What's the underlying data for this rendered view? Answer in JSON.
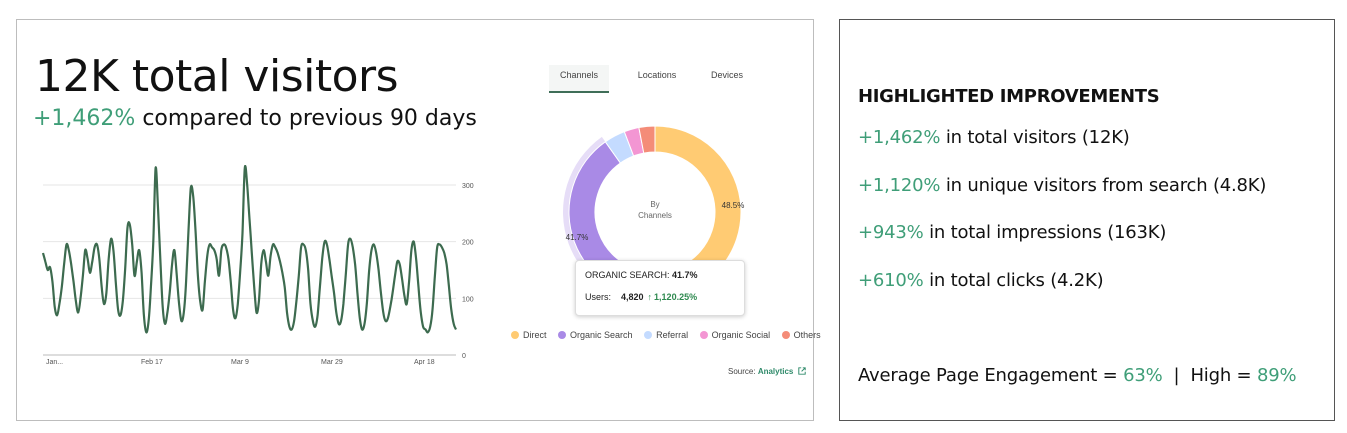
{
  "headline": {
    "title": "12K total visitors",
    "change": "+1,462%",
    "change_suffix": " compared to previous 90 days"
  },
  "tabs": [
    {
      "label": "Channels",
      "active": true
    },
    {
      "label": "Locations",
      "active": false
    },
    {
      "label": "Devices",
      "active": false
    }
  ],
  "line_chart": {
    "type": "line",
    "x_tick_labels": [
      "Jan...",
      "Feb 17",
      "Mar 9",
      "Mar 29",
      "Apr 18"
    ],
    "y_ticks": [
      0,
      100,
      200,
      300
    ],
    "ylim": [
      0,
      300
    ],
    "series": [
      {
        "color": "#3d6b4f",
        "values": [
          180,
          165,
          150,
          155,
          130,
          85,
          70,
          90,
          120,
          160,
          195,
          185,
          160,
          130,
          95,
          75,
          100,
          140,
          185,
          170,
          145,
          165,
          190,
          195,
          170,
          120,
          90,
          110,
          170,
          205,
          185,
          130,
          80,
          70,
          95,
          150,
          225,
          230,
          195,
          140,
          165,
          185,
          145,
          70,
          40,
          60,
          120,
          200,
          330,
          260,
          170,
          85,
          55,
          75,
          110,
          160,
          185,
          140,
          90,
          60,
          75,
          130,
          220,
          295,
          280,
          220,
          140,
          95,
          80,
          130,
          175,
          195,
          190,
          185,
          170,
          140,
          185,
          195,
          190,
          170,
          130,
          80,
          65,
          90,
          145,
          215,
          330,
          300,
          240,
          180,
          120,
          75,
          95,
          160,
          185,
          165,
          140,
          175,
          195,
          190,
          180,
          165,
          145,
          120,
          75,
          50,
          45,
          60,
          95,
          140,
          190,
          195,
          185,
          150,
          90,
          60,
          50,
          70,
          120,
          170,
          200,
          195,
          170,
          140,
          110,
          75,
          55,
          60,
          90,
          140,
          195,
          205,
          190,
          160,
          110,
          65,
          45,
          55,
          90,
          150,
          185,
          195,
          180,
          150,
          110,
          75,
          60,
          65,
          85,
          110,
          140,
          165,
          160,
          135,
          105,
          90,
          130,
          185,
          200,
          170,
          120,
          75,
          50,
          45,
          40,
          50,
          80,
          140,
          190,
          195,
          190,
          180,
          160,
          120,
          80,
          55,
          45
        ]
      }
    ]
  },
  "chart_data": {
    "type": "pie",
    "center_label": "By\nChannels",
    "slices": [
      {
        "label": "Direct",
        "value": 48.5,
        "color": "#ffcb73",
        "data_label": "48.5%"
      },
      {
        "label": "Organic Search",
        "value": 41.7,
        "color": "#a98ae6",
        "data_label": "41.7%"
      },
      {
        "label": "Referral",
        "value": 4.0,
        "color": "#c4dbff",
        "data_label": ""
      },
      {
        "label": "Organic Social",
        "value": 2.8,
        "color": "#f396d3",
        "data_label": ""
      },
      {
        "label": "Others",
        "value": 3.0,
        "color": "#f48c78",
        "data_label": ""
      }
    ],
    "tooltip": {
      "title_label": "ORGANIC SEARCH:",
      "title_value": "41.7%",
      "users_label": "Users:",
      "users_value": "4,820",
      "arrow": "↑",
      "change": "1,120.25%"
    }
  },
  "source": {
    "label": "Source:",
    "link": "Analytics",
    "icon": "external-link-icon"
  },
  "improvements": {
    "heading": "HIGHLIGHTED IMPROVEMENTS",
    "items": [
      {
        "value": "+1,462%",
        "text": " in total visitors (12K)"
      },
      {
        "value": "+1,120%",
        "text": " in unique visitors from search (4.8K)"
      },
      {
        "value": "+943%",
        "text": " in total impressions (163K)"
      },
      {
        "value": "+610%",
        "text": " in total clicks (4.2K)"
      }
    ],
    "engagement": {
      "label": "Average Page Engagement = ",
      "value": "63%",
      "separator": "  |  High = ",
      "high": "89%"
    }
  },
  "colors": {
    "accent_green": "#3f9e78",
    "line_green": "#3d6b4f"
  }
}
